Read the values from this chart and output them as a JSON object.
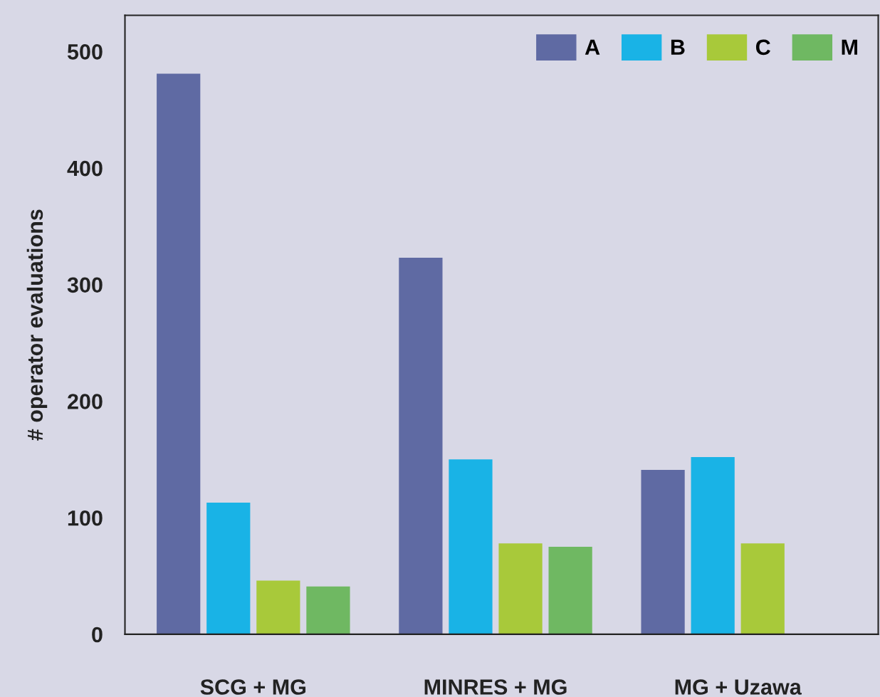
{
  "chart_data": {
    "type": "bar",
    "ylabel": "# operator evaluations",
    "categories": [
      "SCG + MG",
      "MINRES + MG",
      "MG + Uzawa"
    ],
    "series": [
      {
        "name": "A",
        "color": "#5f6aa3",
        "values": [
          481,
          323,
          141
        ]
      },
      {
        "name": "B",
        "color": "#19b3e6",
        "values": [
          113,
          150,
          152
        ]
      },
      {
        "name": "C",
        "color": "#a8c93a",
        "values": [
          46,
          78,
          78
        ]
      },
      {
        "name": "M",
        "color": "#6fb862",
        "values": [
          41,
          75,
          null
        ]
      }
    ],
    "ylim": [
      0,
      531
    ],
    "yticks": [
      0,
      100,
      200,
      300,
      400,
      500
    ],
    "grid": false,
    "legend": "top right"
  }
}
